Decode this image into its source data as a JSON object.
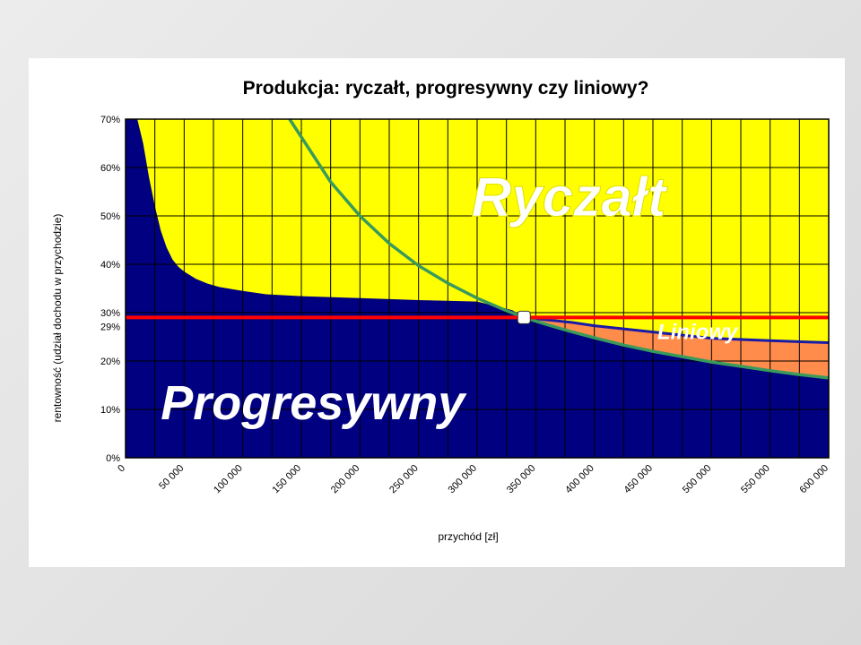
{
  "chart_data": {
    "type": "area",
    "title": "Produkcja: ryczałt, progresywny czy liniowy?",
    "xlabel": "przychód [zł]",
    "ylabel": "rentowność (udział dochodu w przychodzie)",
    "xlim": [
      0,
      600000
    ],
    "ylim": [
      0,
      70
    ],
    "x_ticks": [
      "0",
      "50 000",
      "100 000",
      "150 000",
      "200 000",
      "250 000",
      "300 000",
      "350 000",
      "400 000",
      "450 000",
      "500 000",
      "550 000",
      "600 000"
    ],
    "y_ticks": [
      "0%",
      "10%",
      "20%",
      "30%",
      "40%",
      "50%",
      "60%",
      "70%"
    ],
    "grid": true,
    "reference_label": "29%",
    "region_labels": {
      "ryczalt": "Ryczałt",
      "progresywny": "Progresywny",
      "liniowy": "Liniowy"
    },
    "series": [
      {
        "role": "progressive",
        "x": [
          0,
          10000,
          15000,
          20000,
          25000,
          30000,
          35000,
          40000,
          45000,
          50000,
          60000,
          70000,
          80000,
          100000,
          120000,
          150000,
          200000,
          250000,
          300000,
          330000,
          340000
        ],
        "y": [
          70,
          70,
          65,
          58,
          52,
          47,
          43.5,
          41,
          39.5,
          38.5,
          37,
          36,
          35.3,
          34.5,
          33.8,
          33.4,
          33,
          32.6,
          32.3,
          30.5,
          29
        ]
      },
      {
        "role": "flat",
        "x": [
          340000,
          360000,
          380000,
          400000,
          450000,
          500000,
          550000,
          600000
        ],
        "y": [
          29,
          28.5,
          28,
          27.3,
          26,
          24.7,
          24.2,
          23.8
        ]
      },
      {
        "role": "lump-sum",
        "x": [
          140000,
          150000,
          175000,
          200000,
          225000,
          250000,
          275000,
          300000,
          325000,
          340000,
          360000,
          380000,
          400000,
          425000,
          450000,
          475000,
          500000,
          525000,
          550000,
          575000,
          600000
        ],
        "y": [
          70,
          66.3,
          57,
          50,
          44.3,
          39.7,
          36.1,
          33,
          30.4,
          29,
          27.5,
          26.1,
          24.8,
          23.3,
          22,
          20.9,
          19.8,
          18.9,
          18,
          17.2,
          16.5
        ]
      },
      {
        "role": "reference",
        "x": [
          0,
          600000
        ],
        "y": [
          29,
          29
        ]
      }
    ],
    "colors": {
      "ryczalt": "#ffff00",
      "progresywny": "#000080",
      "liniowy": "#ff8c4a",
      "reference": "#ff0000",
      "lump_line": "#3a9a5c",
      "flat_line": "#1a1aa8",
      "grid": "#000000"
    }
  }
}
